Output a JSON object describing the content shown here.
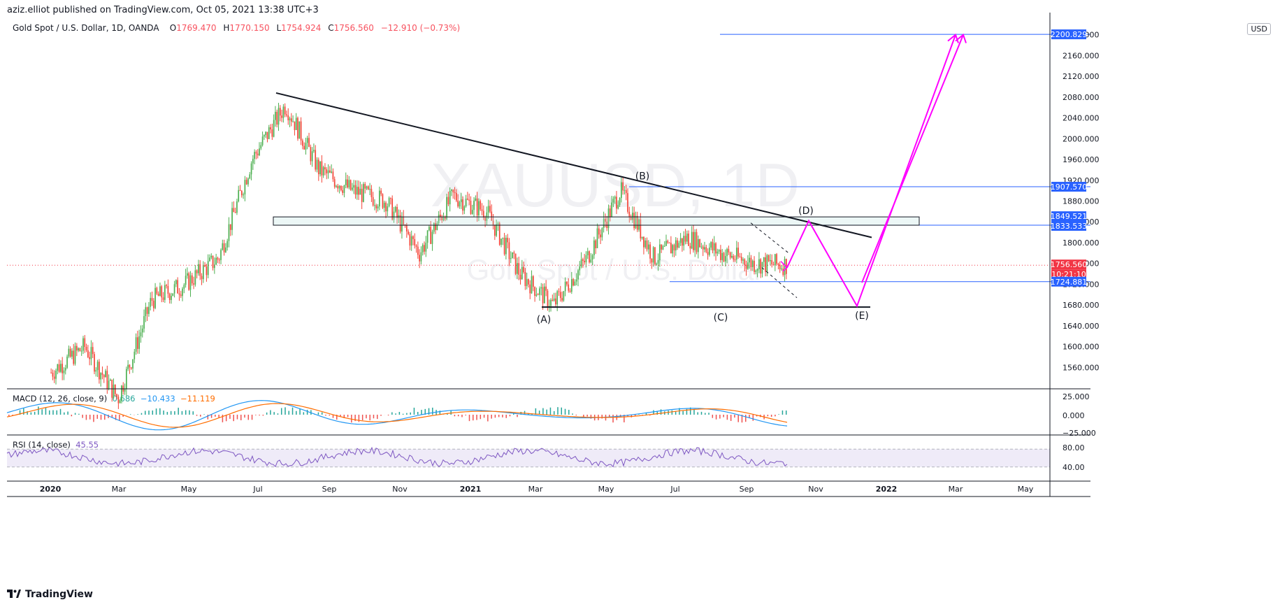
{
  "header": {
    "publisher": "aziz.elliot published on TradingView.com, Oct 05, 2021 13:38 UTC+3"
  },
  "legend": {
    "symbol": "Gold Spot / U.S. Dollar, 1D, OANDA",
    "o_label": "O",
    "o": "1769.470",
    "h_label": "H",
    "h": "1770.150",
    "l_label": "L",
    "l": "1754.924",
    "c_label": "C",
    "c": "1756.560",
    "chg": "−12.910 (−0.73%)"
  },
  "currency": "USD",
  "watermark": {
    "ticker": "XAUUSD, 1D",
    "name": "Gold Spot / U.S. Dollar"
  },
  "macd_legend": {
    "label": "MACD (12, 26, close, 9)",
    "v1": "0.686",
    "v2": "−10.433",
    "v3": "−11.119"
  },
  "rsi_legend": {
    "label": "RSI (14, close)",
    "v": "45.55"
  },
  "footer": {
    "brand": "TradingView"
  },
  "colors": {
    "up": "#26a69a",
    "down": "#ef5350",
    "candle_up": "#4caf50",
    "candle_down": "#f44336",
    "blue_line": "#2962ff",
    "magenta": "#ff00ff",
    "macd": "#2196f3",
    "signal": "#ff6d00",
    "rsi": "#7e57c2"
  },
  "chart_data": {
    "type": "candlestick",
    "x_ticks": [
      "2020",
      "Mar",
      "May",
      "Jul",
      "Sep",
      "Nov",
      "2021",
      "Mar",
      "May",
      "Jul",
      "Sep",
      "Nov",
      "2022",
      "Mar",
      "May"
    ],
    "price_ticks": [
      "2200.000",
      "2160.000",
      "2120.000",
      "2080.000",
      "2040.000",
      "2000.000",
      "1960.000",
      "1920.000",
      "1880.000",
      "1840.000",
      "1800.000",
      "1760.000",
      "1720.000",
      "1680.000",
      "1640.000",
      "1600.000",
      "1560.000"
    ],
    "ylim": [
      1520,
      2240
    ],
    "price_labels": [
      {
        "value": "2200.829",
        "color": "#2962ff"
      },
      {
        "value": "1907.570",
        "color": "#2962ff"
      },
      {
        "value": "1849.521",
        "color": "#2962ff"
      },
      {
        "value": "1833.533",
        "color": "#2962ff"
      },
      {
        "value": "1756.560",
        "color": "#f23645"
      },
      {
        "value": "10:21:10",
        "color": "#f23645"
      },
      {
        "value": "1724.881",
        "color": "#2962ff"
      }
    ],
    "wave_labels": [
      "(A)",
      "(B)",
      "(C)",
      "(D)",
      "(E)"
    ],
    "approx_close_path": [
      [
        "2020-01",
        1550
      ],
      [
        "2020-02",
        1600
      ],
      [
        "2020-03",
        1500
      ],
      [
        "2020-04",
        1690
      ],
      [
        "2020-05",
        1720
      ],
      [
        "2020-06",
        1770
      ],
      [
        "2020-07",
        1960
      ],
      [
        "2020-08",
        2065
      ],
      [
        "2020-08b",
        1940
      ],
      [
        "2020-09",
        1900
      ],
      [
        "2020-10",
        1880
      ],
      [
        "2020-11",
        1780
      ],
      [
        "2020-12",
        1890
      ],
      [
        "2021-01",
        1860
      ],
      [
        "2021-02",
        1740
      ],
      [
        "2021-03",
        1680
      ],
      [
        "2021-04",
        1770
      ],
      [
        "2021-05",
        1900
      ],
      [
        "2021-06",
        1770
      ],
      [
        "2021-07",
        1810
      ],
      [
        "2021-08",
        1780
      ],
      [
        "2021-09",
        1760
      ],
      [
        "2021-10",
        1757
      ]
    ],
    "macd_ticks": [
      "25.000",
      "0.000",
      "−25.000"
    ],
    "rsi_ticks": [
      "80.00",
      "40.00"
    ]
  }
}
